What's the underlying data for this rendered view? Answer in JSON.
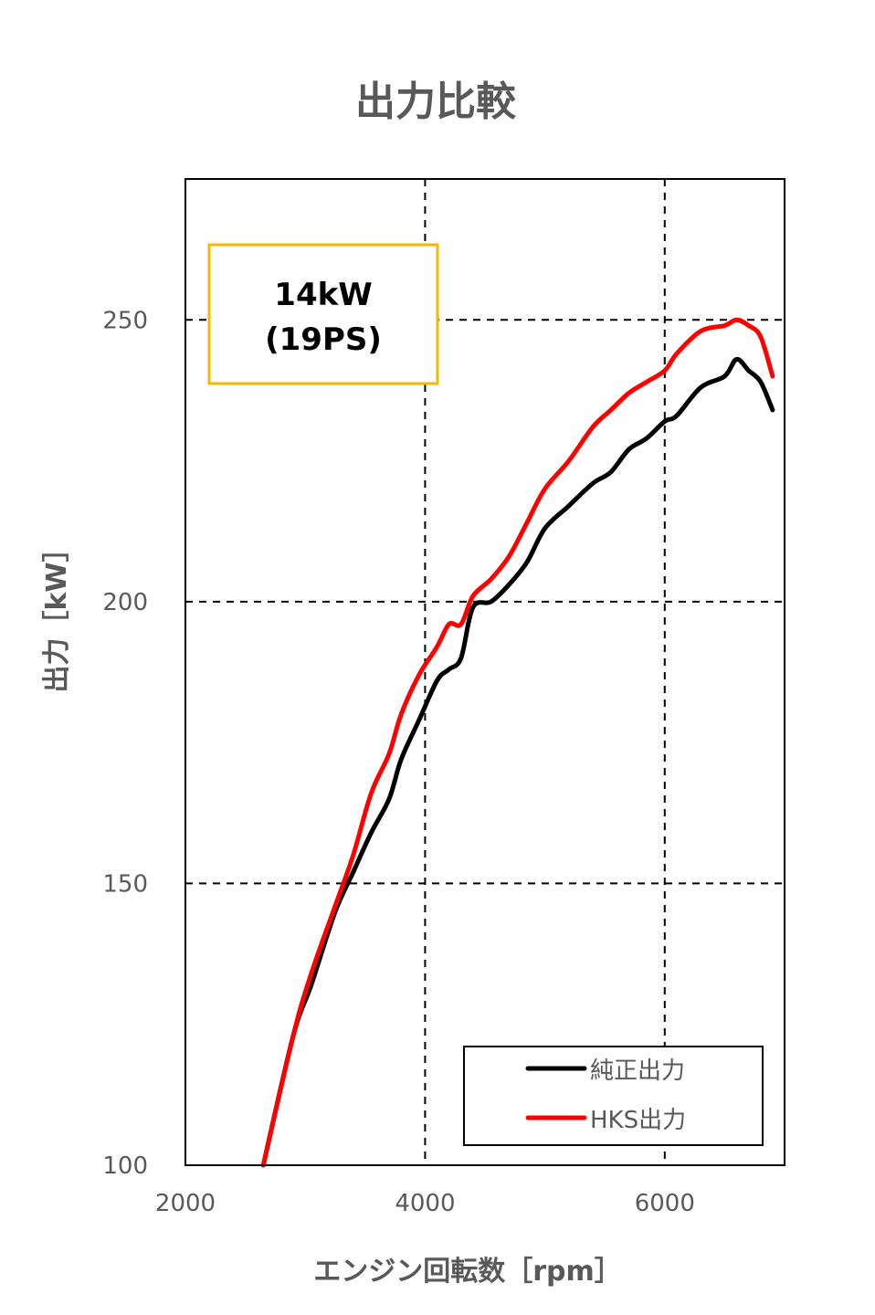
{
  "chart_data": {
    "type": "line",
    "title": "出力比較",
    "xlabel": "エンジン回転数［rpm］",
    "ylabel": "出力［kW］",
    "xlim": [
      2000,
      7000
    ],
    "ylim": [
      100,
      275
    ],
    "xticks": [
      "2000",
      "4000",
      "6000"
    ],
    "yticks": [
      "100",
      "150",
      "200",
      "250"
    ],
    "grid": "dashed",
    "legend_position": "bottom-right",
    "annotation": {
      "line1": "14kW",
      "line2": "(19PS)"
    },
    "colors": {
      "stock": "#000000",
      "hks": "#ff0000",
      "annotation_border": "#f5b800",
      "text": "#595959"
    },
    "series": [
      {
        "name": "純正出力",
        "color": "#000000",
        "x": [
          2650,
          2900,
          3050,
          3250,
          3400,
          3550,
          3700,
          3800,
          3950,
          4100,
          4200,
          4300,
          4400,
          4550,
          4700,
          4850,
          5000,
          5200,
          5400,
          5550,
          5700,
          5850,
          6000,
          6100,
          6300,
          6500,
          6600,
          6700,
          6800,
          6900
        ],
        "y": [
          100,
          123,
          132,
          145,
          152,
          159,
          165,
          172,
          179,
          186,
          188,
          190,
          199,
          200,
          203,
          207,
          213,
          217,
          221,
          223,
          227,
          229,
          232,
          233,
          238,
          240,
          243,
          241,
          239,
          234
        ]
      },
      {
        "name": "HKS出力",
        "color": "#ff0000",
        "x": [
          2650,
          2900,
          3050,
          3250,
          3400,
          3550,
          3700,
          3800,
          3950,
          4100,
          4200,
          4300,
          4400,
          4550,
          4700,
          4850,
          5000,
          5200,
          5400,
          5550,
          5700,
          5850,
          6000,
          6100,
          6300,
          6500,
          6600,
          6700,
          6800,
          6900
        ],
        "y": [
          100,
          123,
          134,
          146,
          155,
          166,
          173,
          180,
          187,
          192,
          196,
          196,
          201,
          204,
          208,
          214,
          220,
          225,
          231,
          234,
          237,
          239,
          241,
          244,
          248,
          249,
          250,
          249,
          247,
          240
        ]
      }
    ]
  }
}
